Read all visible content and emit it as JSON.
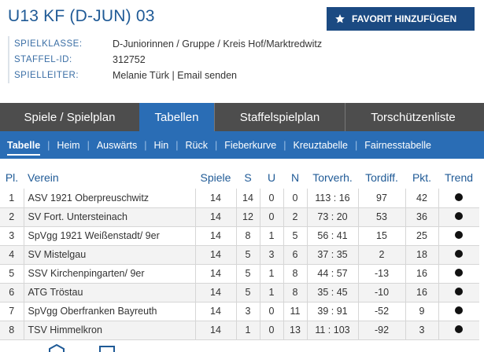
{
  "title": "U13 KF (D-JUN) 03",
  "favorite_button": "FAVORIT HINZUFÜGEN",
  "meta": {
    "spielklasse_label": "SPIELKLASSE:",
    "spielklasse_value": "D-Juniorinnen / Gruppe / Kreis Hof/Marktredwitz",
    "staffel_label": "STAFFEL-ID:",
    "staffel_value": "312752",
    "spielleiter_label": "SPIELLEITER:",
    "spielleiter_name": "Melanie Türk",
    "spielleiter_sep": "|",
    "spielleiter_link": "Email senden"
  },
  "tabs": [
    "Spiele / Spielplan",
    "Tabellen",
    "Staffelspielplan",
    "Torschützenliste"
  ],
  "active_tab": "Tabellen",
  "subnav": [
    "Tabelle",
    "Heim",
    "Auswärts",
    "Hin",
    "Rück",
    "Fieberkurve",
    "Kreuztabelle",
    "Fairnesstabelle"
  ],
  "subnav_sep": "|",
  "active_subnav": "Tabelle",
  "table": {
    "headers": [
      "Pl.",
      "Verein",
      "Spiele",
      "S",
      "U",
      "N",
      "Torverh.",
      "Tordiff.",
      "Pkt.",
      "Trend"
    ],
    "rows": [
      {
        "pl": "1",
        "verein": "ASV 1921 Oberpreuschwitz",
        "spiele": "14",
        "s": "14",
        "u": "0",
        "n": "0",
        "torverh": "113 : 16",
        "tordiff": "97",
        "pkt": "42"
      },
      {
        "pl": "2",
        "verein": "SV Fort. Untersteinach",
        "spiele": "14",
        "s": "12",
        "u": "0",
        "n": "2",
        "torverh": "73 : 20",
        "tordiff": "53",
        "pkt": "36"
      },
      {
        "pl": "3",
        "verein": "SpVgg 1921 Weißenstadt/ 9er",
        "spiele": "14",
        "s": "8",
        "u": "1",
        "n": "5",
        "torverh": "56 : 41",
        "tordiff": "15",
        "pkt": "25"
      },
      {
        "pl": "4",
        "verein": "SV Mistelgau",
        "spiele": "14",
        "s": "5",
        "u": "3",
        "n": "6",
        "torverh": "37 : 35",
        "tordiff": "2",
        "pkt": "18"
      },
      {
        "pl": "5",
        "verein": "SSV Kirchenpingarten/ 9er",
        "spiele": "14",
        "s": "5",
        "u": "1",
        "n": "8",
        "torverh": "44 : 57",
        "tordiff": "-13",
        "pkt": "16"
      },
      {
        "pl": "6",
        "verein": "ATG Tröstau",
        "spiele": "14",
        "s": "5",
        "u": "1",
        "n": "8",
        "torverh": "35 : 45",
        "tordiff": "-10",
        "pkt": "16"
      },
      {
        "pl": "7",
        "verein": "SpVgg Oberfranken Bayreuth",
        "spiele": "14",
        "s": "3",
        "u": "0",
        "n": "11",
        "torverh": "39 : 91",
        "tordiff": "-52",
        "pkt": "9"
      },
      {
        "pl": "8",
        "verein": "TSV Himmelkron",
        "spiele": "14",
        "s": "1",
        "u": "0",
        "n": "13",
        "torverh": "11 : 103",
        "tordiff": "-92",
        "pkt": "3"
      }
    ]
  },
  "icons": {
    "favorite": "star-icon",
    "trend": "trend-dot-icon"
  },
  "colors": {
    "title": "#1f5a96",
    "favorite_button_bg": "#1b4a82",
    "tab_bar": "#4d4d4d",
    "active_blue": "#2a6db5"
  }
}
